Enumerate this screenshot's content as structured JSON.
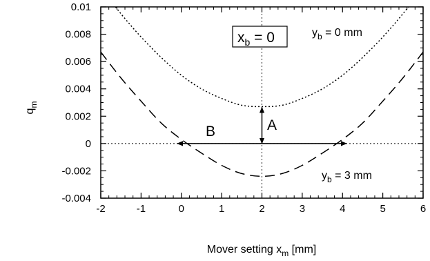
{
  "chart_data": {
    "type": "line",
    "xlabel": "Mover setting x",
    "xlabel_sub": "m",
    "xlabel_unit": " [mm]",
    "ylabel": "q",
    "ylabel_sub": "m",
    "xlim": [
      -2,
      6
    ],
    "ylim": [
      -0.004,
      0.01
    ],
    "x_ticks": [
      -2,
      -1,
      0,
      1,
      2,
      3,
      4,
      5,
      6
    ],
    "x_tick_labels": [
      "-2",
      "-1",
      "0",
      "1",
      "2",
      "3",
      "4",
      "5",
      "6"
    ],
    "y_ticks": [
      -0.004,
      -0.002,
      0,
      0.002,
      0.004,
      0.006,
      0.008,
      0.01
    ],
    "y_tick_labels": [
      "-0.004",
      "-0.002",
      "0",
      "0.002",
      "0.004",
      "0.006",
      "0.008",
      "0.01"
    ],
    "grid": false,
    "series": [
      {
        "name": "y_b = 0 mm",
        "style": "dotted",
        "color": "#000000",
        "x": [
          -2,
          -1.5,
          -1,
          -0.5,
          0,
          0.5,
          1,
          1.5,
          2,
          2.5,
          3,
          3.5,
          4,
          4.5,
          5,
          5.5,
          6
        ],
        "y": [
          0.0114,
          0.0095,
          0.0078,
          0.0063,
          0.005,
          0.004,
          0.0033,
          0.0028,
          0.0027,
          0.0028,
          0.0033,
          0.004,
          0.005,
          0.0063,
          0.0078,
          0.0095,
          0.0114
        ]
      },
      {
        "name": "y_b = 3 mm",
        "style": "dashed",
        "color": "#000000",
        "x": [
          -2,
          -1.5,
          -1,
          -0.5,
          0,
          0.5,
          1,
          1.5,
          2,
          2.5,
          3,
          3.5,
          4,
          4.5,
          5,
          5.5,
          6
        ],
        "y": [
          0.0067,
          0.0048,
          0.0031,
          0.0015,
          0.0003,
          -0.0007,
          -0.0016,
          -0.0022,
          -0.0024,
          -0.0022,
          -0.0016,
          -0.0007,
          0.0003,
          0.0015,
          0.0031,
          0.0048,
          0.0067
        ]
      }
    ],
    "reference_lines": [
      {
        "orientation": "horizontal",
        "value": 0,
        "style": "dotted"
      },
      {
        "orientation": "vertical",
        "value": 2,
        "style": "dotted"
      }
    ],
    "annotations": {
      "xb_box": {
        "main": "x",
        "sub": "b",
        "rest": " = 0"
      },
      "yb0": {
        "main": "y",
        "sub": "b",
        "rest": " = 0 mm"
      },
      "yb3": {
        "main": "y",
        "sub": "b",
        "rest": " = 3 mm"
      },
      "A": "A",
      "B": "B"
    },
    "arrows": {
      "A": {
        "x": 2,
        "y_from": 0,
        "y_to": 0.0027,
        "both_ends": true
      },
      "B": {
        "y": 0,
        "x_from": -0.1,
        "x_to": 4.1,
        "both_ends": true
      }
    }
  }
}
